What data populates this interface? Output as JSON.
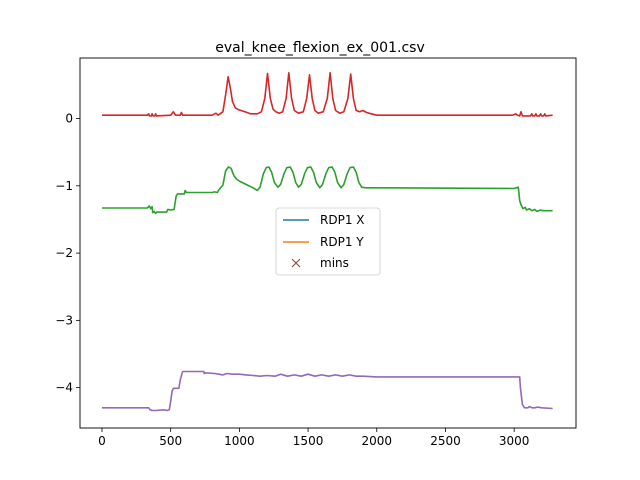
{
  "chart_data": {
    "type": "line",
    "title": "eval_knee_flexion_ex_001.csv",
    "xlabel": "",
    "ylabel": "",
    "xlim": [
      -160,
      3450
    ],
    "ylim": [
      -4.6,
      0.9
    ],
    "xticks": [
      0,
      500,
      1000,
      1500,
      2000,
      2500,
      3000
    ],
    "yticks": [
      0,
      -1,
      -2,
      -3,
      -4
    ],
    "ytick_labels": [
      "0",
      "−1",
      "−2",
      "−3",
      "−4"
    ],
    "grid": false,
    "legend": {
      "placement": "center",
      "entries": [
        {
          "label": "RDP1 X",
          "color": "#1f77b4",
          "marker": "line"
        },
        {
          "label": "RDP1 Y",
          "color": "#ff7f0e",
          "marker": "line"
        },
        {
          "label": "mins",
          "color": "#8c564b",
          "marker": "x"
        }
      ]
    },
    "series": [
      {
        "color": "#d62728",
        "points": [
          [
            0,
            0.05
          ],
          [
            330,
            0.05
          ],
          [
            340,
            0.07
          ],
          [
            345,
            0.04
          ],
          [
            360,
            0.04
          ],
          [
            365,
            0.07
          ],
          [
            372,
            0.04
          ],
          [
            385,
            0.04
          ],
          [
            390,
            0.07
          ],
          [
            397,
            0.04
          ],
          [
            500,
            0.05
          ],
          [
            520,
            0.1
          ],
          [
            535,
            0.05
          ],
          [
            570,
            0.05
          ],
          [
            578,
            0.09
          ],
          [
            588,
            0.05
          ],
          [
            800,
            0.05
          ],
          [
            830,
            0.08
          ],
          [
            845,
            0.05
          ],
          [
            880,
            0.1
          ],
          [
            900,
            0.35
          ],
          [
            918,
            0.62
          ],
          [
            935,
            0.45
          ],
          [
            950,
            0.25
          ],
          [
            970,
            0.16
          ],
          [
            995,
            0.13
          ],
          [
            1040,
            0.1
          ],
          [
            1080,
            0.07
          ],
          [
            1110,
            0.07
          ],
          [
            1130,
            0.07
          ],
          [
            1160,
            0.1
          ],
          [
            1185,
            0.3
          ],
          [
            1205,
            0.67
          ],
          [
            1225,
            0.3
          ],
          [
            1245,
            0.14
          ],
          [
            1265,
            0.1
          ],
          [
            1290,
            0.08
          ],
          [
            1315,
            0.1
          ],
          [
            1340,
            0.3
          ],
          [
            1360,
            0.68
          ],
          [
            1380,
            0.3
          ],
          [
            1400,
            0.12
          ],
          [
            1430,
            0.08
          ],
          [
            1465,
            0.1
          ],
          [
            1490,
            0.3
          ],
          [
            1510,
            0.65
          ],
          [
            1530,
            0.3
          ],
          [
            1550,
            0.12
          ],
          [
            1575,
            0.08
          ],
          [
            1610,
            0.1
          ],
          [
            1640,
            0.3
          ],
          [
            1660,
            0.68
          ],
          [
            1680,
            0.3
          ],
          [
            1700,
            0.12
          ],
          [
            1730,
            0.08
          ],
          [
            1760,
            0.1
          ],
          [
            1790,
            0.3
          ],
          [
            1810,
            0.66
          ],
          [
            1830,
            0.3
          ],
          [
            1850,
            0.12
          ],
          [
            1875,
            0.1
          ],
          [
            1900,
            0.12
          ],
          [
            1925,
            0.09
          ],
          [
            1960,
            0.07
          ],
          [
            2000,
            0.05
          ],
          [
            2990,
            0.05
          ],
          [
            3010,
            0.07
          ],
          [
            3025,
            0.05
          ],
          [
            3040,
            0.04
          ],
          [
            3050,
            0.1
          ],
          [
            3060,
            0.04
          ],
          [
            3120,
            0.04
          ],
          [
            3128,
            0.07
          ],
          [
            3135,
            0.04
          ],
          [
            3150,
            0.04
          ],
          [
            3158,
            0.07
          ],
          [
            3165,
            0.04
          ],
          [
            3185,
            0.04
          ],
          [
            3192,
            0.07
          ],
          [
            3200,
            0.04
          ],
          [
            3215,
            0.04
          ],
          [
            3222,
            0.07
          ],
          [
            3230,
            0.04
          ],
          [
            3280,
            0.05
          ]
        ]
      },
      {
        "color": "#2ca02c",
        "points": [
          [
            0,
            -1.33
          ],
          [
            330,
            -1.33
          ],
          [
            345,
            -1.3
          ],
          [
            355,
            -1.34
          ],
          [
            365,
            -1.31
          ],
          [
            370,
            -1.4
          ],
          [
            380,
            -1.38
          ],
          [
            390,
            -1.41
          ],
          [
            400,
            -1.39
          ],
          [
            470,
            -1.39
          ],
          [
            480,
            -1.35
          ],
          [
            500,
            -1.36
          ],
          [
            525,
            -1.35
          ],
          [
            540,
            -1.15
          ],
          [
            550,
            -1.12
          ],
          [
            600,
            -1.12
          ],
          [
            605,
            -1.07
          ],
          [
            615,
            -1.1
          ],
          [
            680,
            -1.1
          ],
          [
            780,
            -1.1
          ],
          [
            800,
            -1.1
          ],
          [
            820,
            -1.09
          ],
          [
            840,
            -1.1
          ],
          [
            850,
            -1.06
          ],
          [
            880,
            -0.99
          ],
          [
            900,
            -0.78
          ],
          [
            920,
            -0.72
          ],
          [
            940,
            -0.74
          ],
          [
            960,
            -0.85
          ],
          [
            980,
            -0.9
          ],
          [
            1000,
            -0.93
          ],
          [
            1050,
            -0.98
          ],
          [
            1100,
            -1.03
          ],
          [
            1130,
            -1.07
          ],
          [
            1150,
            -1.02
          ],
          [
            1175,
            -0.82
          ],
          [
            1195,
            -0.73
          ],
          [
            1215,
            -0.72
          ],
          [
            1235,
            -0.8
          ],
          [
            1255,
            -0.95
          ],
          [
            1280,
            -1.02
          ],
          [
            1300,
            -0.98
          ],
          [
            1325,
            -0.82
          ],
          [
            1345,
            -0.73
          ],
          [
            1370,
            -0.72
          ],
          [
            1390,
            -0.8
          ],
          [
            1410,
            -0.95
          ],
          [
            1430,
            -1.02
          ],
          [
            1450,
            -0.98
          ],
          [
            1475,
            -0.82
          ],
          [
            1495,
            -0.73
          ],
          [
            1520,
            -0.72
          ],
          [
            1540,
            -0.8
          ],
          [
            1560,
            -0.95
          ],
          [
            1585,
            -1.03
          ],
          [
            1605,
            -0.98
          ],
          [
            1630,
            -0.82
          ],
          [
            1650,
            -0.73
          ],
          [
            1675,
            -0.72
          ],
          [
            1695,
            -0.8
          ],
          [
            1715,
            -0.95
          ],
          [
            1740,
            -1.03
          ],
          [
            1760,
            -0.98
          ],
          [
            1785,
            -0.82
          ],
          [
            1805,
            -0.73
          ],
          [
            1830,
            -0.72
          ],
          [
            1850,
            -0.8
          ],
          [
            1870,
            -0.95
          ],
          [
            1890,
            -1.02
          ],
          [
            1920,
            -1.03
          ],
          [
            2000,
            -1.03
          ],
          [
            3000,
            -1.04
          ],
          [
            3030,
            -1.02
          ],
          [
            3040,
            -1.22
          ],
          [
            3050,
            -1.28
          ],
          [
            3065,
            -1.34
          ],
          [
            3080,
            -1.32
          ],
          [
            3090,
            -1.36
          ],
          [
            3110,
            -1.34
          ],
          [
            3130,
            -1.37
          ],
          [
            3150,
            -1.35
          ],
          [
            3165,
            -1.38
          ],
          [
            3190,
            -1.36
          ],
          [
            3210,
            -1.37
          ],
          [
            3280,
            -1.37
          ]
        ]
      },
      {
        "color": "#9467bd",
        "points": [
          [
            0,
            -4.3
          ],
          [
            330,
            -4.3
          ],
          [
            340,
            -4.3
          ],
          [
            350,
            -4.33
          ],
          [
            365,
            -4.34
          ],
          [
            390,
            -4.34
          ],
          [
            450,
            -4.33
          ],
          [
            475,
            -4.34
          ],
          [
            490,
            -4.33
          ],
          [
            500,
            -4.2
          ],
          [
            510,
            -4.05
          ],
          [
            520,
            -4.01
          ],
          [
            560,
            -4.01
          ],
          [
            570,
            -3.88
          ],
          [
            585,
            -3.77
          ],
          [
            590,
            -3.76
          ],
          [
            670,
            -3.76
          ],
          [
            740,
            -3.76
          ],
          [
            745,
            -3.79
          ],
          [
            750,
            -3.78
          ],
          [
            820,
            -3.79
          ],
          [
            850,
            -3.8
          ],
          [
            880,
            -3.81
          ],
          [
            910,
            -3.79
          ],
          [
            950,
            -3.8
          ],
          [
            1000,
            -3.8
          ],
          [
            1050,
            -3.81
          ],
          [
            1100,
            -3.82
          ],
          [
            1150,
            -3.83
          ],
          [
            1200,
            -3.82
          ],
          [
            1260,
            -3.83
          ],
          [
            1300,
            -3.8
          ],
          [
            1350,
            -3.83
          ],
          [
            1400,
            -3.81
          ],
          [
            1450,
            -3.83
          ],
          [
            1500,
            -3.8
          ],
          [
            1550,
            -3.83
          ],
          [
            1600,
            -3.81
          ],
          [
            1650,
            -3.83
          ],
          [
            1700,
            -3.81
          ],
          [
            1750,
            -3.83
          ],
          [
            1800,
            -3.81
          ],
          [
            1850,
            -3.83
          ],
          [
            1900,
            -3.83
          ],
          [
            2000,
            -3.84
          ],
          [
            2500,
            -3.84
          ],
          [
            3000,
            -3.84
          ],
          [
            3040,
            -3.84
          ],
          [
            3045,
            -4.0
          ],
          [
            3060,
            -4.25
          ],
          [
            3075,
            -4.3
          ],
          [
            3100,
            -4.3
          ],
          [
            3110,
            -4.28
          ],
          [
            3130,
            -4.3
          ],
          [
            3150,
            -4.3
          ],
          [
            3170,
            -4.29
          ],
          [
            3200,
            -4.3
          ],
          [
            3280,
            -4.31
          ]
        ]
      }
    ]
  }
}
